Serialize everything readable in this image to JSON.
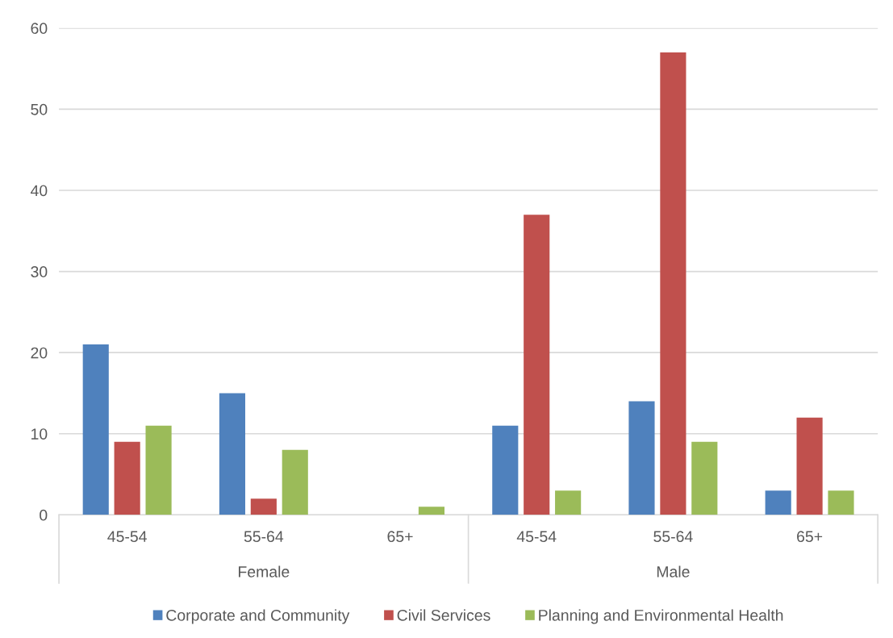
{
  "chart_data": {
    "type": "bar",
    "categories": [
      "45-54",
      "55-64",
      "65+",
      "45-54",
      "55-64",
      "65+"
    ],
    "annotations": [
      "Female",
      "Male"
    ],
    "series": [
      {
        "name": "Corporate and Community",
        "color": "#4f81bd",
        "values": [
          21,
          15,
          null,
          11,
          14,
          3
        ]
      },
      {
        "name": "Civil Services",
        "color": "#c0504d",
        "values": [
          9,
          2,
          null,
          37,
          57,
          12
        ]
      },
      {
        "name": "Planning and Environmental Health",
        "color": "#9bbb59",
        "values": [
          11,
          8,
          1,
          3,
          9,
          3
        ]
      }
    ],
    "ylim": [
      0,
      60
    ],
    "yticks": [
      0,
      10,
      20,
      30,
      40,
      50,
      60
    ],
    "grid": "y",
    "legend": "bottom"
  }
}
